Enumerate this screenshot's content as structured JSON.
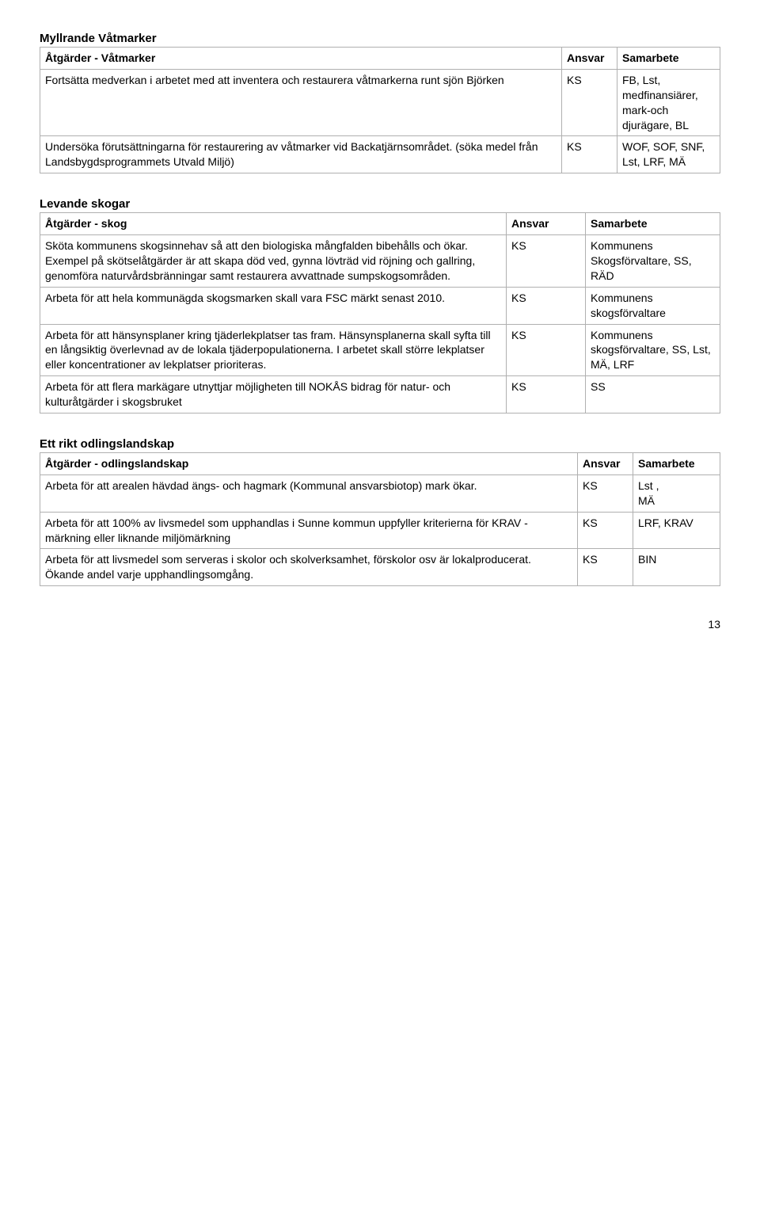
{
  "sections": [
    {
      "title": "Myllrande Våtmarker",
      "header": {
        "atgarder": "Åtgärder - Våtmarker",
        "ansvar": "Ansvar",
        "samarbete": "Samarbete"
      },
      "col_widths": {
        "ansvar": "70px",
        "samarbete": "130px"
      },
      "rows": [
        {
          "atgard": "Fortsätta medverkan i arbetet med att inventera och restaurera våtmarkerna runt sjön Björken",
          "ansvar": "KS",
          "samarbete": "FB, Lst, medfinansiärer, mark-och djurägare, BL"
        },
        {
          "atgard": "Undersöka förutsättningarna för restaurering av våtmarker vid Backatjärnsområdet. (söka medel från Landsbygdsprogrammets Utvald Miljö)",
          "ansvar": "KS",
          "samarbete": "WOF, SOF, SNF, Lst, LRF, MÄ"
        }
      ]
    },
    {
      "title": "Levande skogar",
      "header": {
        "atgarder": "Åtgärder - skog",
        "ansvar": "Ansvar",
        "samarbete": "Samarbete"
      },
      "col_widths": {
        "ansvar": "100px",
        "samarbete": "170px"
      },
      "rows": [
        {
          "atgard": "Sköta kommunens skogsinnehav så att den biologiska mångfalden bibehålls och ökar. Exempel på skötselåtgärder är att skapa död ved, gynna lövträd vid röjning och gallring, genomföra naturvårdsbränningar samt restaurera avvattnade sumpskogsområden.",
          "ansvar": "KS",
          "samarbete": "Kommunens Skogsförvaltare, SS, RÄD"
        },
        {
          "atgard": "Arbeta för att hela kommunägda skogsmarken skall vara FSC märkt senast 2010.",
          "ansvar": "KS",
          "samarbete": "Kommunens skogsförvaltare"
        },
        {
          "atgard": "Arbeta för att hänsynsplaner kring tjäderlekplatser tas fram. Hänsynsplanerna skall syfta till en långsiktig överlevnad av de lokala tjäderpopulationerna. I arbetet skall större lekplatser eller koncentrationer av lekplatser prioriteras.",
          "ansvar": "KS",
          "samarbete": "Kommunens skogsförvaltare, SS, Lst, MÄ, LRF"
        },
        {
          "atgard": "Arbeta för att flera markägare utnyttjar möjligheten till NOKÅS bidrag för natur- och kulturåtgärder i skogsbruket",
          "ansvar": "KS",
          "samarbete": "SS"
        }
      ]
    },
    {
      "title": "Ett rikt odlingslandskap",
      "header": {
        "atgarder": "Åtgärder - odlingslandskap",
        "ansvar": "Ansvar",
        "samarbete": "Samarbete"
      },
      "col_widths": {
        "ansvar": "70px",
        "samarbete": "110px"
      },
      "rows": [
        {
          "atgard": "Arbeta för att arealen hävdad ängs- och hagmark (Kommunal ansvarsbiotop) mark ökar.",
          "ansvar": "KS",
          "samarbete": "Lst ,\nMÄ"
        },
        {
          "atgard": "Arbeta för att 100% av livsmedel som upphandlas i Sunne kommun uppfyller kriterierna för KRAV - märkning eller liknande miljömärkning",
          "ansvar": "KS",
          "samarbete": "LRF, KRAV"
        },
        {
          "atgard": "Arbeta för att livsmedel som serveras i skolor och skolverksamhet, förskolor osv är lokalproducerat. Ökande andel varje upphandlingsomgång.",
          "ansvar": "KS",
          "samarbete": "BIN"
        }
      ]
    }
  ],
  "page_number": "13"
}
